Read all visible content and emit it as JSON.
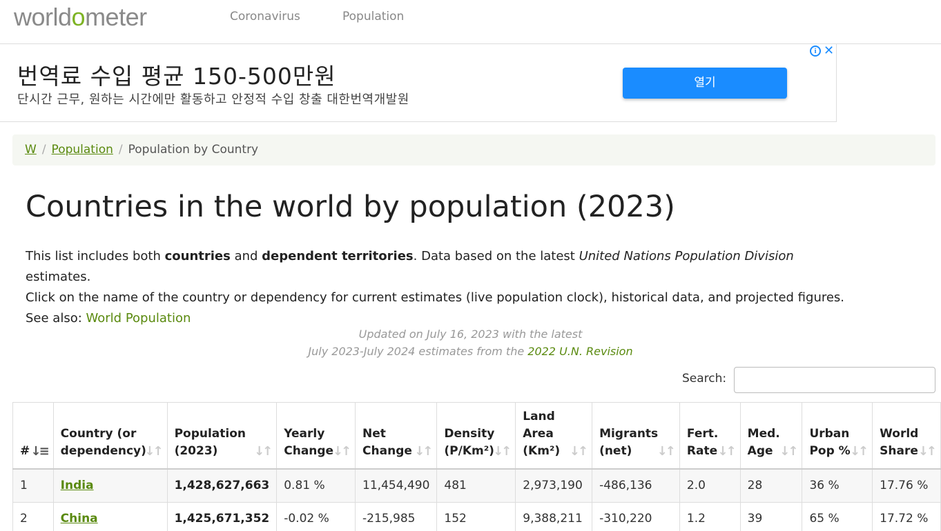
{
  "header": {
    "logo": {
      "part1": "world",
      "part2": "o",
      "part3": "meter"
    },
    "nav": [
      {
        "label": "Coronavirus"
      },
      {
        "label": "Population"
      }
    ]
  },
  "ad": {
    "title": "번역료 수입 평균 150-500만원",
    "subtitle": "단시간 근무, 원하는 시간에만 활동하고 안정적 수입 창출 대한번역개발원",
    "button": "열기",
    "info_icon": "info-icon",
    "close_icon": "close-icon"
  },
  "breadcrumb": {
    "home": "W",
    "section": "Population",
    "current": "Population by Country"
  },
  "page_title": "Countries in the world by population (2023)",
  "intro": {
    "t1": "This list includes both ",
    "b1": "countries",
    "t2": " and ",
    "b2": "dependent territories",
    "t3": ". Data based on the latest ",
    "i1": "United Nations Population Division",
    "t4": " estimates.",
    "line2": "Click on the name of the country or dependency for current estimates (live population clock), historical data, and projected figures.",
    "see_also": "See also: ",
    "see_also_link": "World Population"
  },
  "updated": {
    "line1": "Updated on July 16, 2023 with the latest",
    "line2_prefix": "July 2023-July 2024 estimates from the ",
    "line2_link": "2022 U.N. Revision"
  },
  "search": {
    "label": "Search:",
    "value": "",
    "placeholder": ""
  },
  "table": {
    "headers": [
      [
        "#"
      ],
      [
        "Country (or",
        "dependency)"
      ],
      [
        "Population",
        "(2023)"
      ],
      [
        "Yearly",
        "Change"
      ],
      [
        "Net",
        "Change"
      ],
      [
        "Density",
        "(P/Km²)"
      ],
      [
        "Land",
        "Area",
        "(Km²)"
      ],
      [
        "Migrants",
        "(net)"
      ],
      [
        "Fert.",
        "Rate"
      ],
      [
        "Med.",
        "Age"
      ],
      [
        "Urban",
        "Pop %"
      ],
      [
        "World",
        "Share"
      ]
    ],
    "rows": [
      [
        "1",
        "India",
        "1,428,627,663",
        "0.81 %",
        "11,454,490",
        "481",
        "2,973,190",
        "-486,136",
        "2.0",
        "28",
        "36 %",
        "17.76 %"
      ],
      [
        "2",
        "China",
        "1,425,671,352",
        "-0.02 %",
        "-215,985",
        "152",
        "9,388,211",
        "-310,220",
        "1.2",
        "39",
        "65 %",
        "17.72 %"
      ]
    ]
  },
  "colors": {
    "brand_green": "#5a8a0f",
    "logo_green": "#7db323",
    "ad_button": "#1a8cff"
  }
}
